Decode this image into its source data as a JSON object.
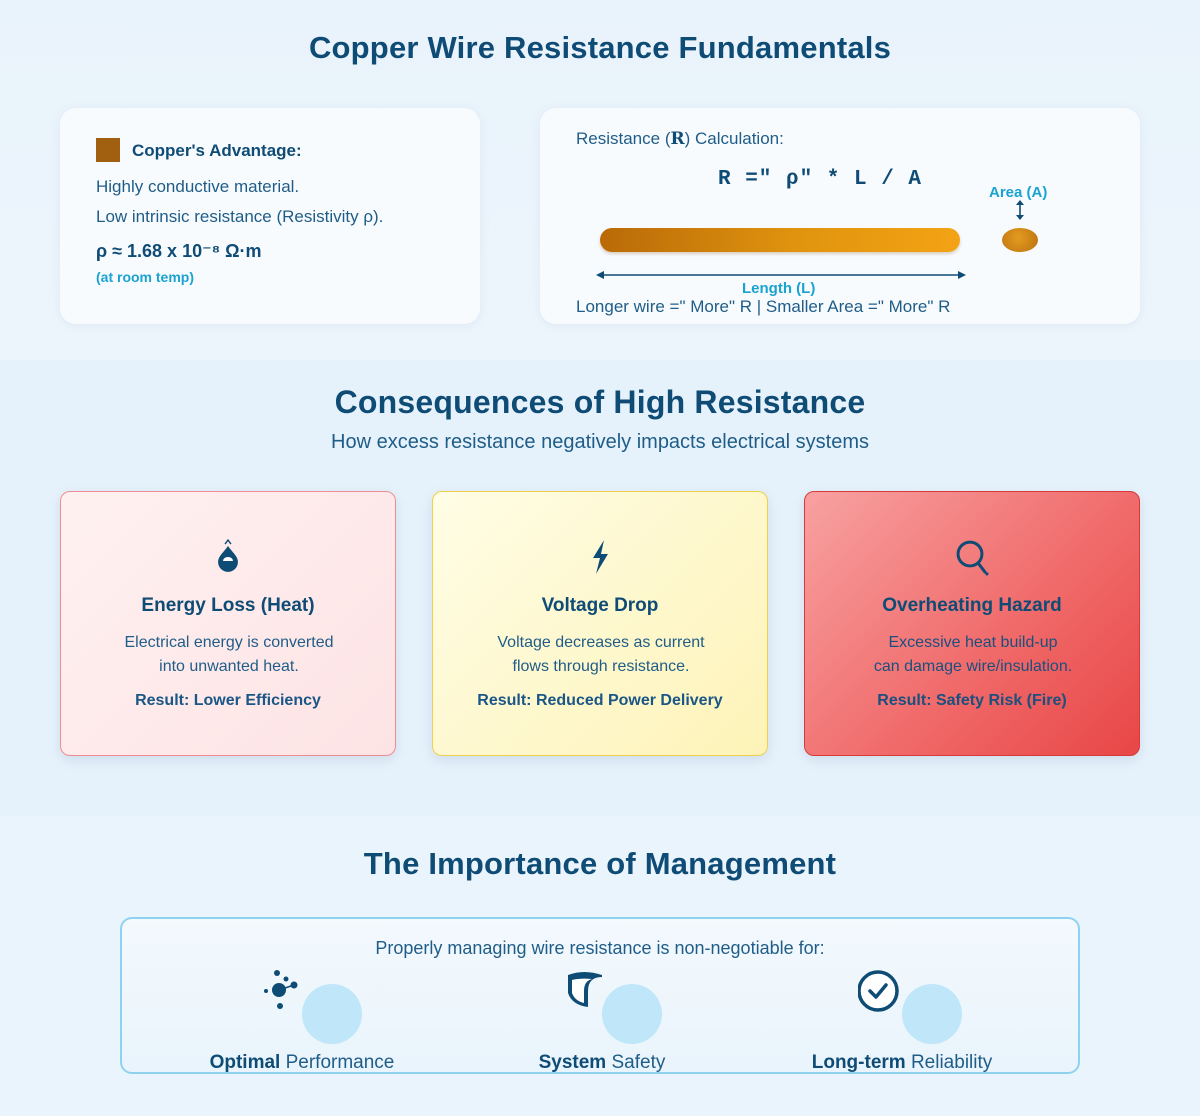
{
  "section1": {
    "title": "Copper Wire Resistance Fundamentals",
    "copper": {
      "heading": "Copper's Advantage:",
      "line1": "Highly conductive material.",
      "line2": "Low intrinsic resistance (Resistivity ρ).",
      "resistivity": "ρ ≈ 1.68 x 10⁻⁸ Ω·m",
      "note": "(at room temp)",
      "swatch_color": "#a0600f"
    },
    "calculation": {
      "heading_pre": "Resistance (",
      "heading_symbol": "R",
      "heading_post": ") Calculation:",
      "formula": "R =\" ρ\" * L / A",
      "area_label": "Area (A)",
      "length_label": "Length (L)",
      "footer": "Longer wire =\" More\" R | Smaller Area =\" More\" R"
    }
  },
  "section2": {
    "title": "Consequences of High Resistance",
    "subtitle": "How excess resistance negatively impacts electrical systems",
    "cards": [
      {
        "icon": "droplet-icon",
        "title": "Energy Loss (Heat)",
        "desc_line1": "Electrical energy is converted",
        "desc_line2": "into unwanted heat.",
        "result": "Result: Lower Efficiency"
      },
      {
        "icon": "lightning-icon",
        "title": "Voltage Drop",
        "desc_line1": "Voltage decreases as current",
        "desc_line2": "flows through resistance.",
        "result": "Result: Reduced Power Delivery"
      },
      {
        "icon": "magnifier-icon",
        "title": "Overheating Hazard",
        "desc_line1": "Excessive heat build-up",
        "desc_line2": "can damage wire/insulation.",
        "result": "Result: Safety Risk (Fire)"
      }
    ]
  },
  "section3": {
    "title": "The Importance of Management",
    "lead": "Properly managing wire resistance is non-negotiable for:",
    "pillars": [
      {
        "icon": "molecule-icon",
        "bold": "Optimal",
        "rest": "Performance"
      },
      {
        "icon": "shield-icon",
        "bold": "System",
        "rest": "Safety"
      },
      {
        "icon": "check-circle-icon",
        "bold": "Long-term",
        "rest": "Reliability"
      }
    ]
  }
}
